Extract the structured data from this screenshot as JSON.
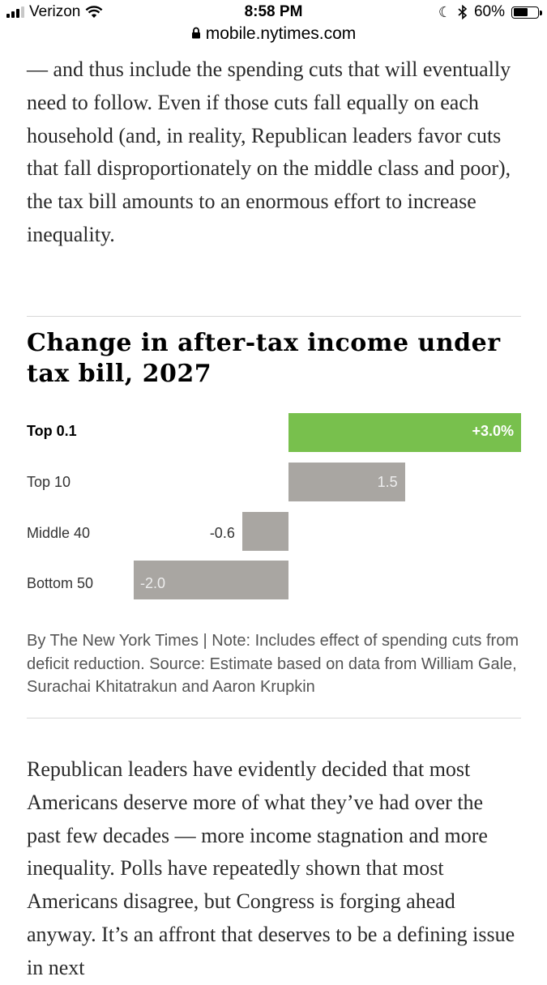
{
  "status_bar": {
    "carrier": "Verizon",
    "time": "8:58 PM",
    "battery": "60%",
    "battery_level": 0.6
  },
  "browser": {
    "url": "mobile.nytimes.com"
  },
  "article": {
    "para1": "— and thus include the spending cuts that will eventually need to follow. Even if those cuts fall equally on each household (and, in reality, Republican leaders favor cuts that fall disproportionately on the middle class and poor), the tax bill amounts to an enormous effort to increase inequality.",
    "para2": "Republican leaders have evidently decided that most Americans deserve more of what they’ve had over the past few decades — more income stagnation and more inequality. Polls have repeatedly shown that most Americans disagree, but Congress is forging ahead anyway. It’s an affront that deserves to be a defining issue in next"
  },
  "chart_data": {
    "type": "bar",
    "orientation": "horizontal",
    "title": "Change in after-tax income under tax bill, 2027",
    "categories": [
      "Top 0.1",
      "Top 10",
      "Middle 40",
      "Bottom 50"
    ],
    "values": [
      3.0,
      1.5,
      -0.6,
      -2.0
    ],
    "value_labels": [
      "+3.0%",
      "1.5",
      "-0.6",
      "-2.0"
    ],
    "xlim": [
      -2.0,
      3.0
    ],
    "highlight_index": 0,
    "colors": {
      "highlight": "#78c04d",
      "default": "#a9a6a2"
    },
    "credit": "By The New York Times | Note: Includes effect of spending cuts from deficit reduction. Source: Estimate based on data from William Gale, Surachai Khitatrakun and Aaron Krupkin"
  }
}
